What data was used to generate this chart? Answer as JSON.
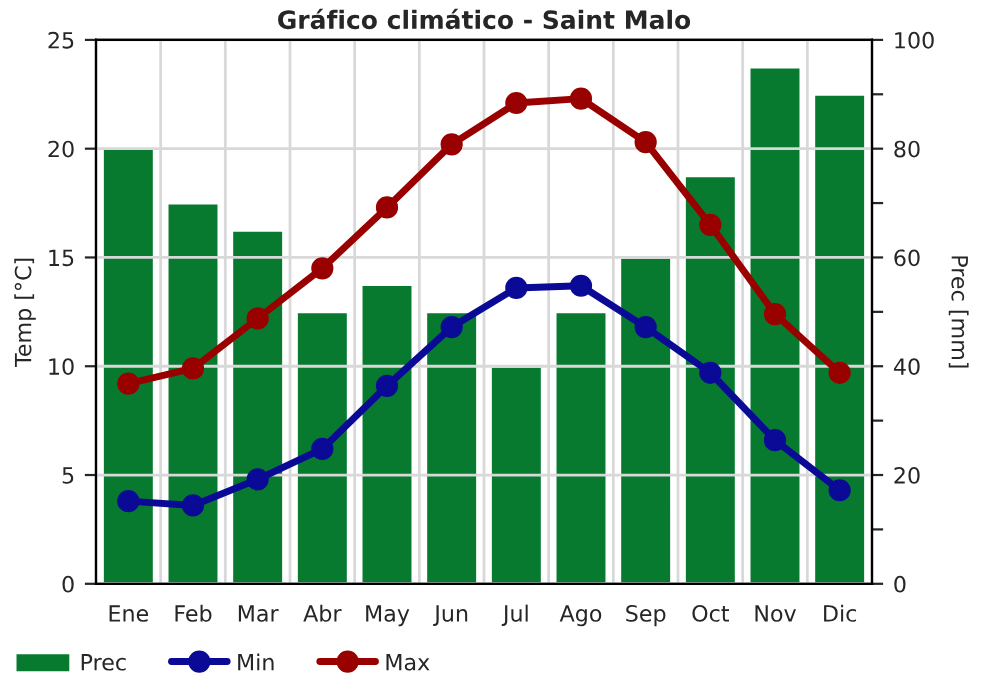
{
  "chart_data": {
    "type": "bar",
    "title": "Gráfico climático - Saint Malo",
    "ylabel": "Temp [°C]",
    "y2label": "Prec [mm]",
    "categories": [
      "Ene",
      "Feb",
      "Mar",
      "Abr",
      "May",
      "Jun",
      "Jul",
      "Ago",
      "Sep",
      "Oct",
      "Nov",
      "Dic"
    ],
    "series": [
      {
        "name": "Prec",
        "axis": "y2",
        "color": "#077a30",
        "values": [
          80,
          70,
          65,
          50,
          55,
          50,
          40,
          50,
          60,
          75,
          95,
          90
        ]
      },
      {
        "name": "Min",
        "type": "line",
        "color": "#0a0a96",
        "values": [
          3.8,
          3.6,
          4.8,
          6.2,
          9.1,
          11.8,
          13.6,
          13.7,
          11.8,
          9.7,
          6.6,
          4.3
        ]
      },
      {
        "name": "Max",
        "type": "line",
        "color": "#990000",
        "values": [
          9.2,
          9.9,
          12.2,
          14.5,
          17.3,
          20.2,
          22.1,
          22.3,
          20.3,
          16.5,
          12.4,
          9.7
        ]
      }
    ],
    "ylim": [
      0,
      25
    ],
    "yticks": [
      0,
      5,
      10,
      15,
      20,
      25
    ],
    "y2lim": [
      0,
      100
    ],
    "y2ticks": [
      0,
      {
        "value": 10,
        "label": null
      },
      20,
      {
        "value": 30,
        "label": null
      },
      40,
      {
        "value": 50,
        "label": null
      },
      60,
      {
        "value": 70,
        "label": null
      },
      80,
      {
        "value": 90,
        "label": null
      },
      100
    ],
    "grid": true,
    "legend": "bottom",
    "marker": "circle",
    "line_style": "solid"
  }
}
